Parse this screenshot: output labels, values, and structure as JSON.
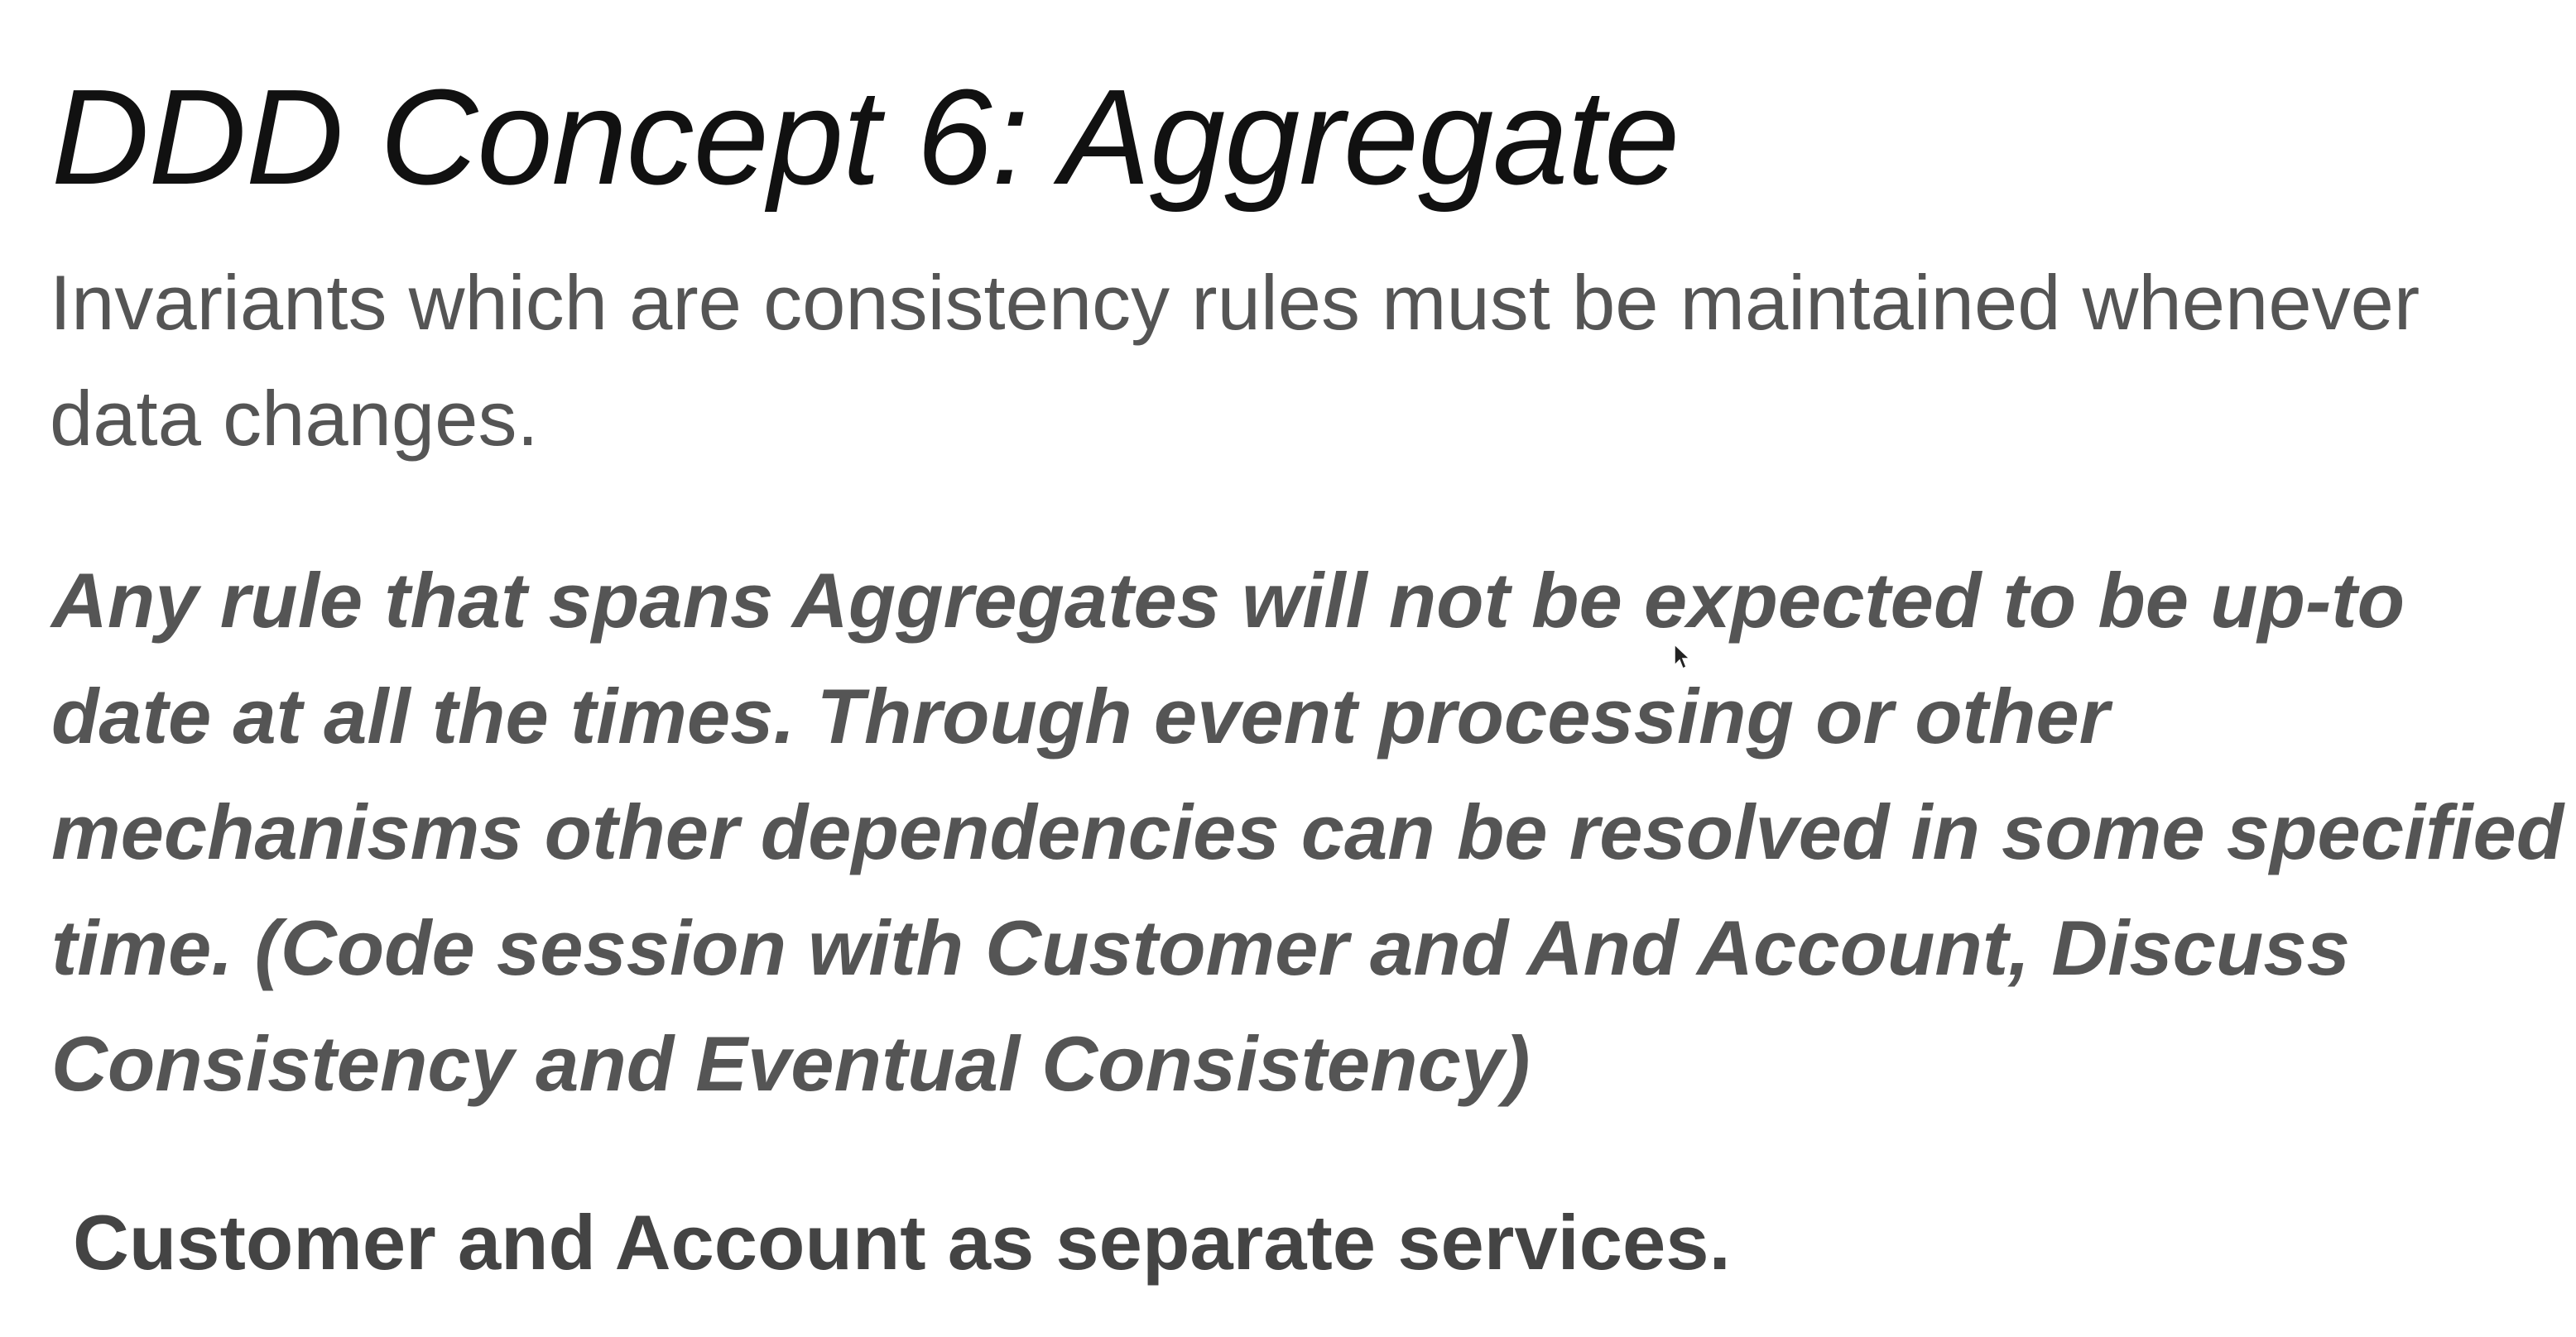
{
  "slide": {
    "title": "DDD Concept 6: Aggregate",
    "intro": "Invariants which are consistency rules must be maintained whenever data changes.",
    "rule": "Any rule that spans Aggregates will not be expected to be up-to date at all the times. Through event processing or other mechanisms other dependencies can be resolved in some specified time.  (Code session with Customer and And Account, Discuss Consistency and Eventual Consistency)",
    "conclusion": "Customer and Account as separate services."
  },
  "icons": {
    "cursor": "mouse-pointer-icon"
  },
  "colors": {
    "background": "#ffffff",
    "title": "#111111",
    "body_text": "#555555",
    "conclusion_text": "#444444"
  }
}
